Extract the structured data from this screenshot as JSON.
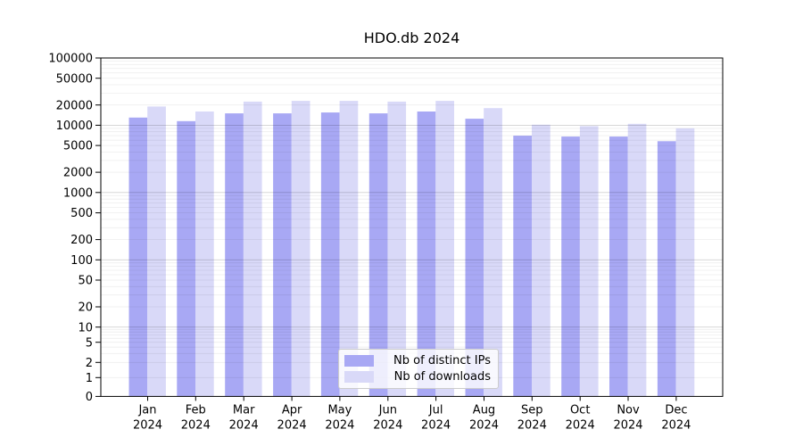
{
  "chart_data": {
    "type": "bar",
    "title": "HDO.db 2024",
    "yscale": "symlog",
    "ylim": [
      0,
      100000
    ],
    "grid": true,
    "legend_position": "lower center",
    "categories": [
      "Jan 2024",
      "Feb 2024",
      "Mar 2024",
      "Apr 2024",
      "May 2024",
      "Jun 2024",
      "Jul 2024",
      "Aug 2024",
      "Sep 2024",
      "Oct 2024",
      "Nov 2024",
      "Dec 2024"
    ],
    "yticks": [
      0,
      1,
      2,
      5,
      10,
      20,
      50,
      100,
      200,
      500,
      1000,
      2000,
      5000,
      10000,
      20000,
      50000,
      100000
    ],
    "series": [
      {
        "name": "Nb of distinct IPs",
        "color": "#a8a8f4",
        "values": [
          13000,
          11500,
          15000,
          15000,
          15500,
          15000,
          16000,
          12500,
          7000,
          6800,
          6800,
          5800
        ]
      },
      {
        "name": "Nb of downloads",
        "color": "#d9d9f8",
        "values": [
          19000,
          16000,
          22500,
          23000,
          23000,
          22500,
          23000,
          18000,
          10200,
          9700,
          10500,
          9000
        ]
      }
    ],
    "colors": {
      "axis": "#000000",
      "major_grid": "rgba(0,0,0,0.18)",
      "minor_grid": "rgba(0,0,0,0.07)"
    }
  }
}
